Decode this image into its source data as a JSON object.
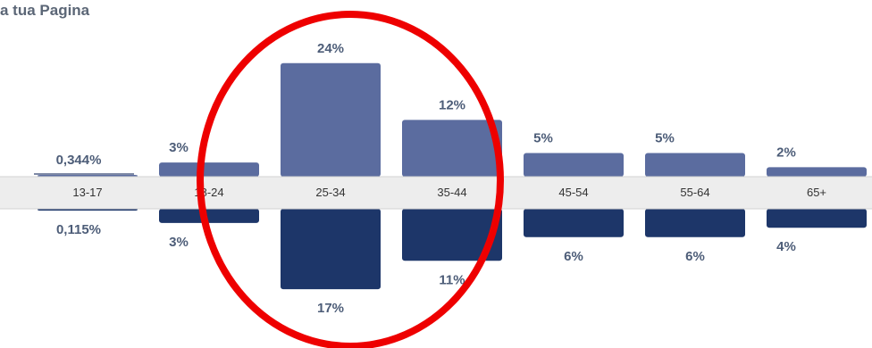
{
  "header": {
    "title": "a tua Pagina"
  },
  "colors": {
    "top_series": "#5b6c9f",
    "bottom_series": "#1d3669",
    "annotation": "#ee0000",
    "axis_band": "#ededed"
  },
  "chart_data": {
    "type": "bar",
    "title": "a tua Pagina",
    "layout": "diverging",
    "categories": [
      "13-17",
      "18-24",
      "25-34",
      "35-44",
      "45-54",
      "55-64",
      "65+"
    ],
    "series": [
      {
        "values": [
          0.344,
          3,
          24,
          12,
          5,
          5,
          2
        ],
        "labels": [
          "0,344%",
          "3%",
          "24%",
          "12%",
          "5%",
          "5%",
          "2%"
        ]
      },
      {
        "values": [
          0.115,
          3,
          17,
          11,
          6,
          6,
          4
        ],
        "labels": [
          "0,115%",
          "3%",
          "17%",
          "11%",
          "6%",
          "6%",
          "4%"
        ]
      }
    ],
    "unit": "%",
    "annotation": {
      "shape": "ellipse",
      "highlights": [
        "25-34",
        "35-44"
      ]
    }
  }
}
